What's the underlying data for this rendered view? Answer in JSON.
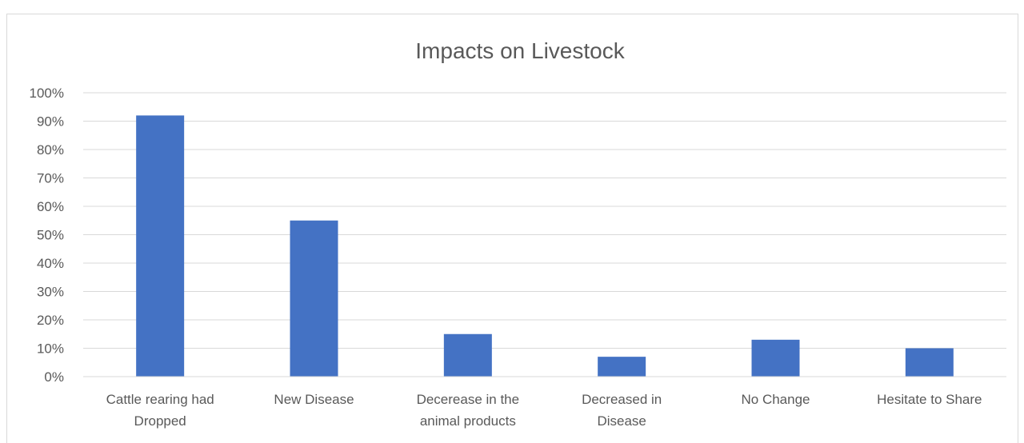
{
  "chart_data": {
    "type": "bar",
    "title": "Impacts on Livestock",
    "xlabel": "",
    "ylabel": "",
    "categories": [
      [
        "Cattle rearing had",
        "Dropped"
      ],
      [
        "New Disease"
      ],
      [
        "Decerease in the",
        "animal products"
      ],
      [
        "Decreased in",
        "Disease"
      ],
      [
        "No Change"
      ],
      [
        "Hesitate to Share"
      ]
    ],
    "values": [
      0.92,
      0.55,
      0.15,
      0.07,
      0.13,
      0.1
    ],
    "ylim": [
      0,
      1.0
    ],
    "yticks": [
      0,
      0.1,
      0.2,
      0.3,
      0.4,
      0.5,
      0.6,
      0.7,
      0.8,
      0.9,
      1.0
    ],
    "ytick_labels": [
      "0%",
      "10%",
      "20%",
      "30%",
      "40%",
      "50%",
      "60%",
      "70%",
      "80%",
      "90%",
      "100%"
    ],
    "grid": true,
    "legend": "none",
    "bar_color": "#4472C4",
    "grid_color": "#d9d9d9",
    "text_color": "#595959"
  }
}
